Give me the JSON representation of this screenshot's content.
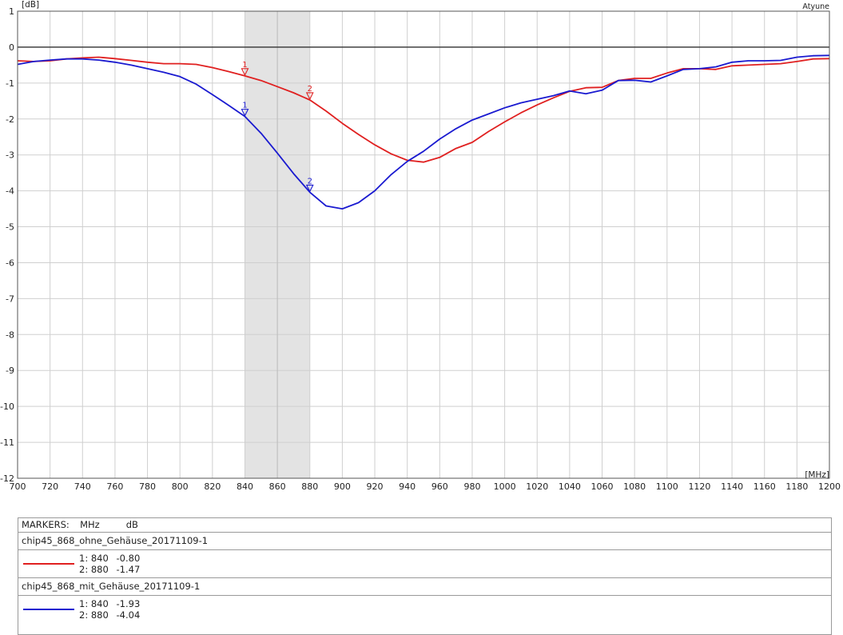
{
  "chart_data": {
    "type": "line",
    "title": "",
    "xlabel": "[MHz]",
    "ylabel": "[dB]",
    "corner_label": "Atyune",
    "xlim": [
      700,
      1200
    ],
    "ylim": [
      -12,
      1
    ],
    "xticks": [
      700,
      720,
      740,
      760,
      780,
      800,
      820,
      840,
      860,
      880,
      900,
      920,
      940,
      960,
      980,
      1000,
      1020,
      1040,
      1060,
      1080,
      1100,
      1120,
      1140,
      1160,
      1180,
      1200
    ],
    "yticks": [
      1,
      0,
      -1,
      -2,
      -3,
      -4,
      -5,
      -6,
      -7,
      -8,
      -9,
      -10,
      -11,
      -12
    ],
    "grid": true,
    "shaded_band": [
      840,
      880
    ],
    "band_divider": 860,
    "series": [
      {
        "name": "chip45_868_ohne_Gehäuse_20171109-1",
        "color": "#e02020",
        "x": [
          700,
          710,
          720,
          730,
          740,
          750,
          760,
          770,
          780,
          790,
          800,
          810,
          820,
          830,
          840,
          850,
          860,
          870,
          880,
          890,
          900,
          910,
          920,
          930,
          940,
          950,
          960,
          970,
          980,
          990,
          1000,
          1010,
          1020,
          1030,
          1040,
          1050,
          1060,
          1070,
          1080,
          1090,
          1100,
          1110,
          1120,
          1130,
          1140,
          1150,
          1160,
          1170,
          1180,
          1190,
          1200
        ],
        "y": [
          -0.38,
          -0.4,
          -0.38,
          -0.33,
          -0.3,
          -0.28,
          -0.32,
          -0.37,
          -0.42,
          -0.46,
          -0.46,
          -0.48,
          -0.57,
          -0.68,
          -0.8,
          -0.93,
          -1.1,
          -1.27,
          -1.47,
          -1.78,
          -2.12,
          -2.43,
          -2.72,
          -2.97,
          -3.15,
          -3.2,
          -3.07,
          -2.82,
          -2.65,
          -2.35,
          -2.08,
          -1.83,
          -1.61,
          -1.41,
          -1.23,
          -1.13,
          -1.12,
          -0.93,
          -0.87,
          -0.87,
          -0.72,
          -0.6,
          -0.6,
          -0.62,
          -0.52,
          -0.5,
          -0.48,
          -0.46,
          -0.4,
          -0.33,
          -0.32
        ],
        "markers": [
          {
            "label": "1",
            "x": 840,
            "y": -0.8
          },
          {
            "label": "2",
            "x": 880,
            "y": -1.47
          }
        ]
      },
      {
        "name": "chip45_868_mit_Gehäuse_20171109-1",
        "color": "#1a1ad0",
        "x": [
          700,
          710,
          720,
          730,
          740,
          750,
          760,
          770,
          780,
          790,
          800,
          810,
          820,
          830,
          840,
          850,
          860,
          870,
          880,
          890,
          900,
          910,
          920,
          930,
          940,
          950,
          960,
          970,
          980,
          990,
          1000,
          1010,
          1020,
          1030,
          1040,
          1050,
          1060,
          1070,
          1080,
          1090,
          1100,
          1110,
          1120,
          1130,
          1140,
          1150,
          1160,
          1170,
          1180,
          1190,
          1200
        ],
        "y": [
          -0.48,
          -0.4,
          -0.36,
          -0.33,
          -0.33,
          -0.36,
          -0.42,
          -0.5,
          -0.6,
          -0.7,
          -0.82,
          -1.03,
          -1.32,
          -1.62,
          -1.93,
          -2.4,
          -2.95,
          -3.52,
          -4.04,
          -4.42,
          -4.5,
          -4.33,
          -4.0,
          -3.55,
          -3.18,
          -2.9,
          -2.56,
          -2.27,
          -2.03,
          -1.86,
          -1.69,
          -1.55,
          -1.45,
          -1.35,
          -1.22,
          -1.3,
          -1.2,
          -0.93,
          -0.92,
          -0.97,
          -0.8,
          -0.62,
          -0.6,
          -0.55,
          -0.42,
          -0.38,
          -0.38,
          -0.37,
          -0.28,
          -0.24,
          -0.23
        ],
        "markers": [
          {
            "label": "1",
            "x": 840,
            "y": -1.93
          },
          {
            "label": "2",
            "x": 880,
            "y": -4.04
          }
        ]
      }
    ]
  },
  "legend": {
    "header_title": "MARKERS:",
    "header_x_unit": "MHz",
    "header_y_unit": "dB",
    "series": [
      {
        "name": "chip45_868_ohne_Gehäuse_20171109-1",
        "color": "#e02020",
        "markers": [
          {
            "id": "1:",
            "x": "840",
            "y": "-0.80"
          },
          {
            "id": "2:",
            "x": "880",
            "y": "-1.47"
          }
        ]
      },
      {
        "name": "chip45_868_mit_Gehäuse_20171109-1",
        "color": "#1a1ad0",
        "markers": [
          {
            "id": "1:",
            "x": "840",
            "y": "-1.93"
          },
          {
            "id": "2:",
            "x": "880",
            "y": "-4.04"
          }
        ]
      }
    ]
  }
}
